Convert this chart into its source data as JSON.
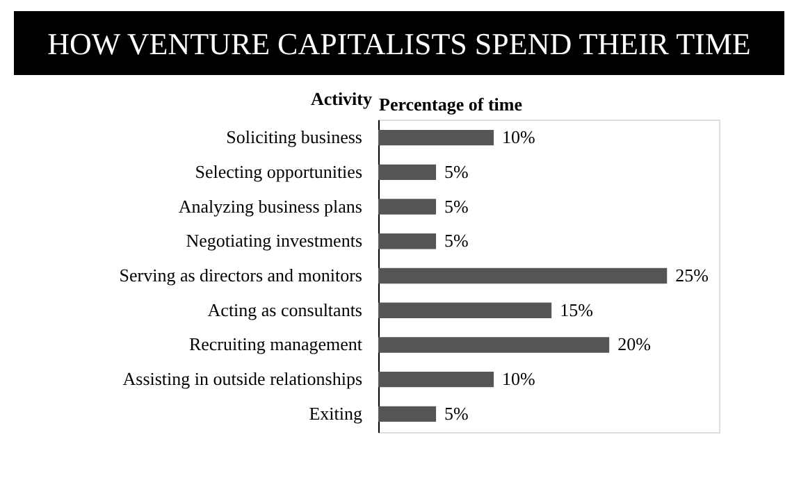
{
  "chart_data": {
    "type": "bar",
    "orientation": "horizontal",
    "title": "HOW VENTURE CAPITALISTS SPEND THEIR TIME",
    "ylabel": "Activity",
    "xlabel": "Percentage of time",
    "categories": [
      "Soliciting business",
      "Selecting opportunities",
      "Analyzing business plans",
      "Negotiating investments",
      "Serving as directors and monitors",
      "Acting as consultants",
      "Recruiting management",
      "Assisting in outside relationships",
      "Exiting"
    ],
    "values": [
      10,
      5,
      5,
      5,
      25,
      15,
      20,
      10,
      5
    ],
    "value_labels": [
      "10%",
      "5%",
      "5%",
      "5%",
      "25%",
      "15%",
      "20%",
      "10%",
      "5%"
    ],
    "color": "#555555",
    "grid": false
  }
}
